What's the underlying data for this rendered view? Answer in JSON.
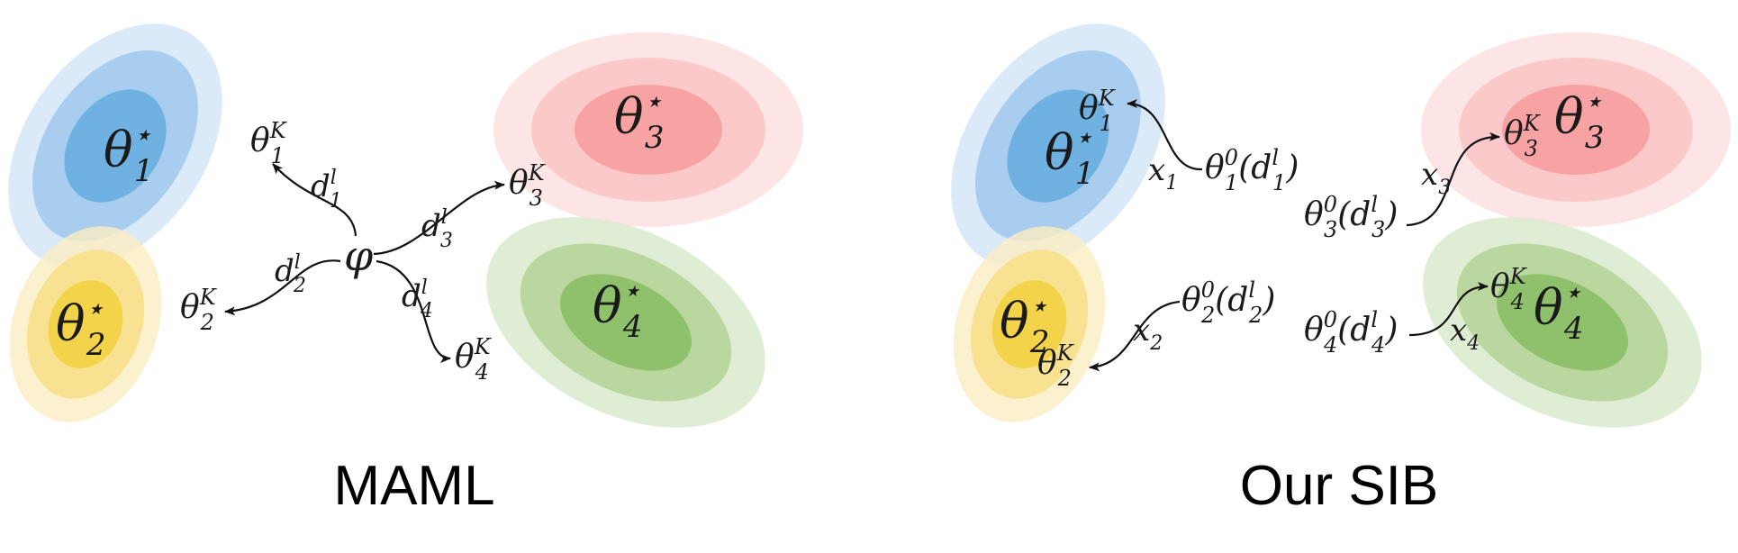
{
  "panels": [
    {
      "title": "MAML",
      "center_symbol": "φ",
      "optima": [
        {
          "base": "θ",
          "sub": "1",
          "sup": "⋆",
          "color": "#5aa7dc"
        },
        {
          "base": "θ",
          "sub": "2",
          "sup": "⋆",
          "color": "#f3d34a"
        },
        {
          "base": "θ",
          "sub": "3",
          "sup": "⋆",
          "color": "#f7a3a3"
        },
        {
          "base": "θ",
          "sub": "4",
          "sup": "⋆",
          "color": "#8fc06b"
        }
      ],
      "adapted": [
        {
          "base": "θ",
          "sub": "1",
          "sup": "K"
        },
        {
          "base": "θ",
          "sub": "2",
          "sup": "K"
        },
        {
          "base": "θ",
          "sub": "3",
          "sup": "K"
        },
        {
          "base": "θ",
          "sub": "4",
          "sup": "K"
        }
      ],
      "data_labels": [
        {
          "base": "d",
          "sub": "1",
          "sup": "l"
        },
        {
          "base": "d",
          "sub": "2",
          "sup": "l"
        },
        {
          "base": "d",
          "sub": "3",
          "sup": "l"
        },
        {
          "base": "d",
          "sub": "4",
          "sup": "l"
        }
      ]
    },
    {
      "title": "Our SIB",
      "optima": [
        {
          "base": "θ",
          "sub": "1",
          "sup": "⋆",
          "color": "#5aa7dc"
        },
        {
          "base": "θ",
          "sub": "2",
          "sup": "⋆",
          "color": "#f3d34a"
        },
        {
          "base": "θ",
          "sub": "3",
          "sup": "⋆",
          "color": "#f7a3a3"
        },
        {
          "base": "θ",
          "sub": "4",
          "sup": "⋆",
          "color": "#8fc06b"
        }
      ],
      "adapted": [
        {
          "base": "θ",
          "sub": "1",
          "sup": "K"
        },
        {
          "base": "θ",
          "sub": "2",
          "sup": "K"
        },
        {
          "base": "θ",
          "sub": "3",
          "sup": "K"
        },
        {
          "base": "θ",
          "sub": "4",
          "sup": "K"
        }
      ],
      "init": [
        {
          "base": "θ",
          "sub": "1",
          "sup": "0",
          "arg": "d",
          "arg_sub": "1",
          "arg_sup": "l"
        },
        {
          "base": "θ",
          "sub": "2",
          "sup": "0",
          "arg": "d",
          "arg_sub": "2",
          "arg_sup": "l"
        },
        {
          "base": "θ",
          "sub": "3",
          "sup": "0",
          "arg": "d",
          "arg_sub": "3",
          "arg_sup": "l"
        },
        {
          "base": "θ",
          "sub": "4",
          "sup": "0",
          "arg": "d",
          "arg_sub": "4",
          "arg_sup": "l"
        }
      ],
      "inputs": [
        {
          "base": "x",
          "sub": "1"
        },
        {
          "base": "x",
          "sub": "2"
        },
        {
          "base": "x",
          "sub": "3"
        },
        {
          "base": "x",
          "sub": "4"
        }
      ]
    }
  ]
}
